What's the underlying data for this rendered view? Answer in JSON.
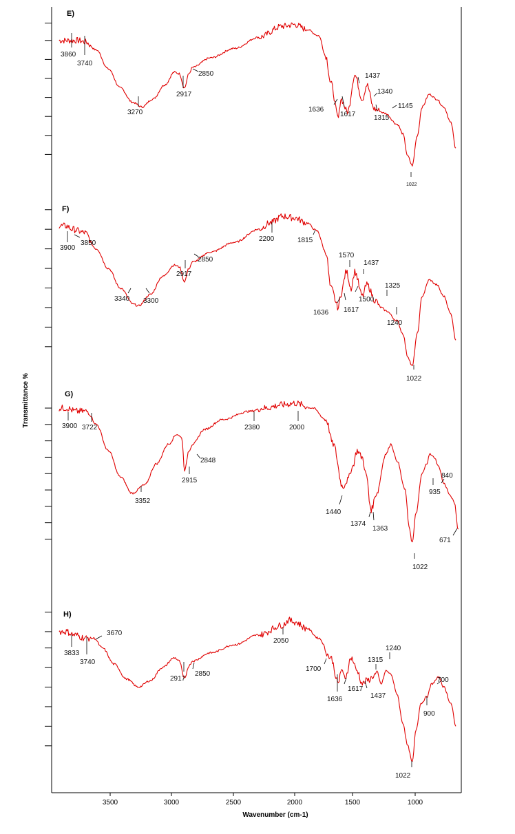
{
  "chart_data": {
    "type": "line",
    "xlabel": "Wavenumber (cm-1)",
    "ylabel": "Transmittance %",
    "x_reversed": true,
    "xlim": [
      4000,
      630
    ],
    "xticks": [
      3500,
      3000,
      2500,
      2000,
      1500,
      1000
    ],
    "xtick_labels": [
      "3500",
      "3000",
      "2500",
      "2000",
      "1500",
      "1000"
    ],
    "grid": false,
    "color": "#e00000",
    "series": [
      {
        "name": "E)",
        "x": [
          3960,
          3860,
          3800,
          3740,
          3650,
          3550,
          3450,
          3350,
          3270,
          3180,
          3080,
          3000,
          2960,
          2917,
          2880,
          2850,
          2700,
          2500,
          2300,
          2100,
          2000,
          1900,
          1800,
          1740,
          1700,
          1636,
          1617,
          1560,
          1500,
          1437,
          1400,
          1340,
          1315,
          1250,
          1145,
          1100,
          1060,
          1022,
          980,
          940,
          880,
          820,
          760,
          700,
          660
        ],
        "y": [
          84,
          84,
          84,
          83,
          78,
          66,
          54,
          45,
          42,
          47,
          56,
          64,
          63,
          54,
          63,
          67,
          73,
          79,
          86,
          93,
          94,
          91,
          87,
          74,
          57,
          35,
          47,
          39,
          62,
          47,
          56,
          41,
          40,
          38,
          31,
          25,
          11,
          5,
          24,
          42,
          50,
          47,
          42,
          32,
          16
        ],
        "ticks": [
          95,
          84,
          72,
          60,
          48,
          36,
          24,
          12
        ],
        "peaks": [
          "3860",
          "3740",
          "3270",
          "2917",
          "2850",
          "1636",
          "1617",
          "1437",
          "1340",
          "1315",
          "1145",
          "1022"
        ]
      },
      {
        "name": "F)",
        "x": [
          3960,
          3900,
          3850,
          3750,
          3650,
          3550,
          3450,
          3340,
          3300,
          3200,
          3100,
          3000,
          2960,
          2917,
          2880,
          2850,
          2700,
          2500,
          2300,
          2200,
          2100,
          2000,
          1900,
          1815,
          1740,
          1700,
          1636,
          1617,
          1570,
          1530,
          1500,
          1437,
          1400,
          1325,
          1280,
          1240,
          1150,
          1100,
          1060,
          1022,
          980,
          940,
          880,
          820,
          760,
          700,
          660
        ],
        "y": [
          88,
          88,
          86,
          84,
          74,
          62,
          50,
          40,
          39,
          46,
          57,
          64,
          63,
          54,
          62,
          66,
          72,
          78,
          86,
          90,
          94,
          93,
          90,
          85,
          72,
          50,
          38,
          46,
          60,
          50,
          60,
          45,
          52,
          42,
          38,
          36,
          30,
          22,
          8,
          2,
          22,
          45,
          55,
          52,
          45,
          34,
          18
        ],
        "ticks": [
          98,
          86,
          74,
          62,
          50,
          38,
          26,
          14
        ],
        "peaks": [
          "3900",
          "3850",
          "3340",
          "3300",
          "2917",
          "2850",
          "2200",
          "1815",
          "1636",
          "1617",
          "1570",
          "1500",
          "1437",
          "1325",
          "1240",
          "1022"
        ]
      },
      {
        "name": "G)",
        "x": [
          3960,
          3900,
          3820,
          3722,
          3650,
          3550,
          3450,
          3352,
          3250,
          3150,
          3050,
          2980,
          2940,
          2915,
          2880,
          2848,
          2750,
          2600,
          2380,
          2250,
          2100,
          2000,
          1850,
          1740,
          1680,
          1600,
          1560,
          1520,
          1480,
          1440,
          1400,
          1374,
          1363,
          1320,
          1240,
          1200,
          1150,
          1080,
          1050,
          1022,
          990,
          940,
          900,
          880,
          840,
          800,
          760,
          700,
          671,
          640
        ],
        "y": [
          92,
          92,
          90,
          90,
          82,
          66,
          50,
          40,
          45,
          58,
          70,
          76,
          74,
          54,
          66,
          70,
          79,
          85,
          90,
          92,
          94,
          95,
          92,
          85,
          70,
          44,
          48,
          56,
          66,
          62,
          50,
          33,
          30,
          40,
          64,
          70,
          60,
          42,
          20,
          10,
          28,
          52,
          58,
          64,
          62,
          56,
          46,
          38,
          34,
          18
        ],
        "ticks": [
          92,
          82,
          72,
          62,
          52,
          42,
          32,
          22,
          12
        ],
        "peaks": [
          "3900",
          "3722",
          "3352",
          "2915",
          "2848",
          "2380",
          "2000",
          "1440",
          "1374",
          "1363",
          "1022",
          "935",
          "840",
          "671"
        ]
      },
      {
        "name": "H)",
        "x": [
          3960,
          3900,
          3833,
          3740,
          3670,
          3600,
          3500,
          3400,
          3300,
          3200,
          3100,
          3000,
          2960,
          2917,
          2880,
          2850,
          2700,
          2500,
          2300,
          2100,
          2050,
          2000,
          1900,
          1800,
          1700,
          1636,
          1617,
          1580,
          1530,
          1480,
          1437,
          1400,
          1315,
          1280,
          1240,
          1200,
          1150,
          1100,
          1060,
          1022,
          990,
          950,
          900,
          860,
          800,
          760,
          700,
          660
        ],
        "y": [
          84,
          84,
          82,
          80,
          80,
          74,
          64,
          55,
          50,
          54,
          62,
          68,
          66,
          55,
          63,
          66,
          71,
          76,
          82,
          88,
          91,
          90,
          86,
          80,
          68,
          52,
          60,
          56,
          68,
          60,
          52,
          54,
          58,
          52,
          60,
          58,
          46,
          28,
          14,
          4,
          24,
          40,
          44,
          52,
          56,
          50,
          40,
          26
        ],
        "ticks": [
          96,
          84,
          74,
          62,
          50,
          38,
          26,
          14
        ],
        "peaks": [
          "3833",
          "3740",
          "3670",
          "2917",
          "2850",
          "2050",
          "1700",
          "1636",
          "1617",
          "1437",
          "1315",
          "1240",
          "900",
          "700",
          "1022"
        ]
      }
    ]
  }
}
